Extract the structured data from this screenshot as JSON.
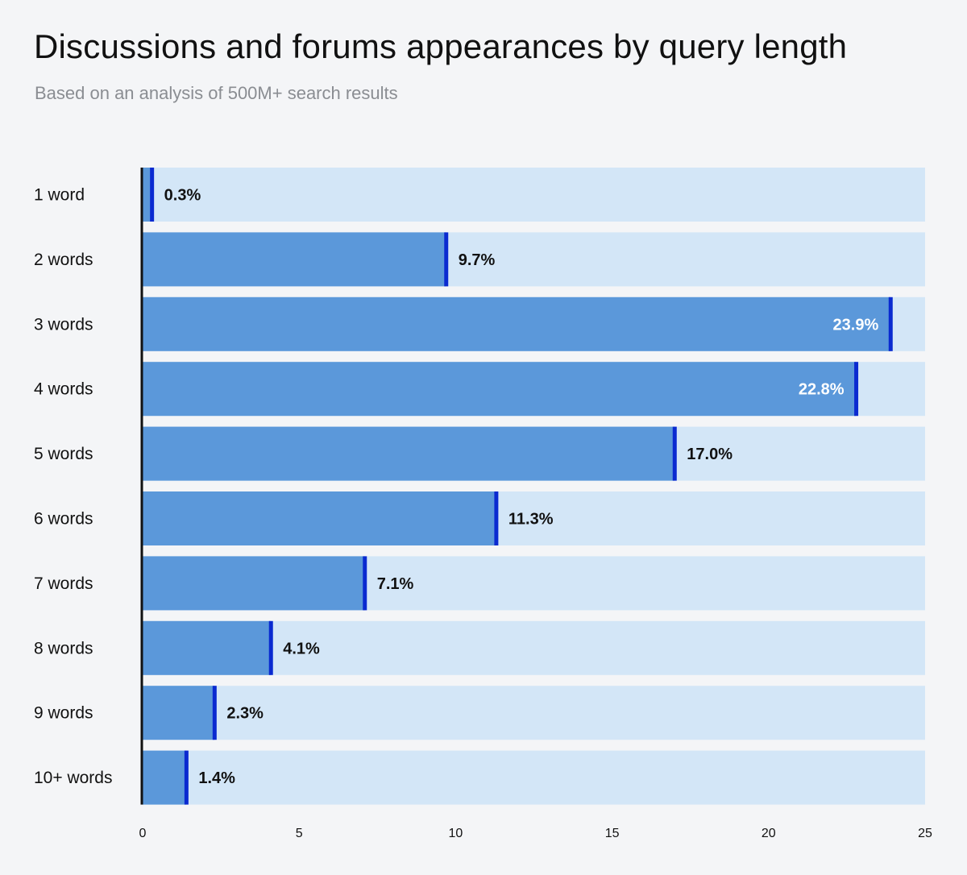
{
  "chart_data": {
    "type": "bar",
    "orientation": "horizontal",
    "title": "Discussions and forums appearances by query length",
    "subtitle": "Based on an analysis of 500M+ search results",
    "categories": [
      "1 word",
      "2 words",
      "3 words",
      "4 words",
      "5 words",
      "6 words",
      "7 words",
      "8 words",
      "9 words",
      "10+ words"
    ],
    "values": [
      0.3,
      9.7,
      23.9,
      22.8,
      17.0,
      11.3,
      7.1,
      4.1,
      2.3,
      1.4
    ],
    "value_labels": [
      "0.3%",
      "9.7%",
      "23.9%",
      "22.8%",
      "17.0%",
      "11.3%",
      "7.1%",
      "4.1%",
      "2.3%",
      "1.4%"
    ],
    "xlim": [
      0,
      25
    ],
    "xticks": [
      "0",
      "5",
      "10",
      "15",
      "20",
      "25"
    ],
    "xlabel": "",
    "ylabel": "",
    "grid": false,
    "colors": {
      "bar": "#5b98da",
      "track": "#d3e6f7",
      "bar_end": "#0a2ad0",
      "axis": "#111111",
      "label_inside": "#ffffff",
      "label_outside": "#111111"
    }
  }
}
